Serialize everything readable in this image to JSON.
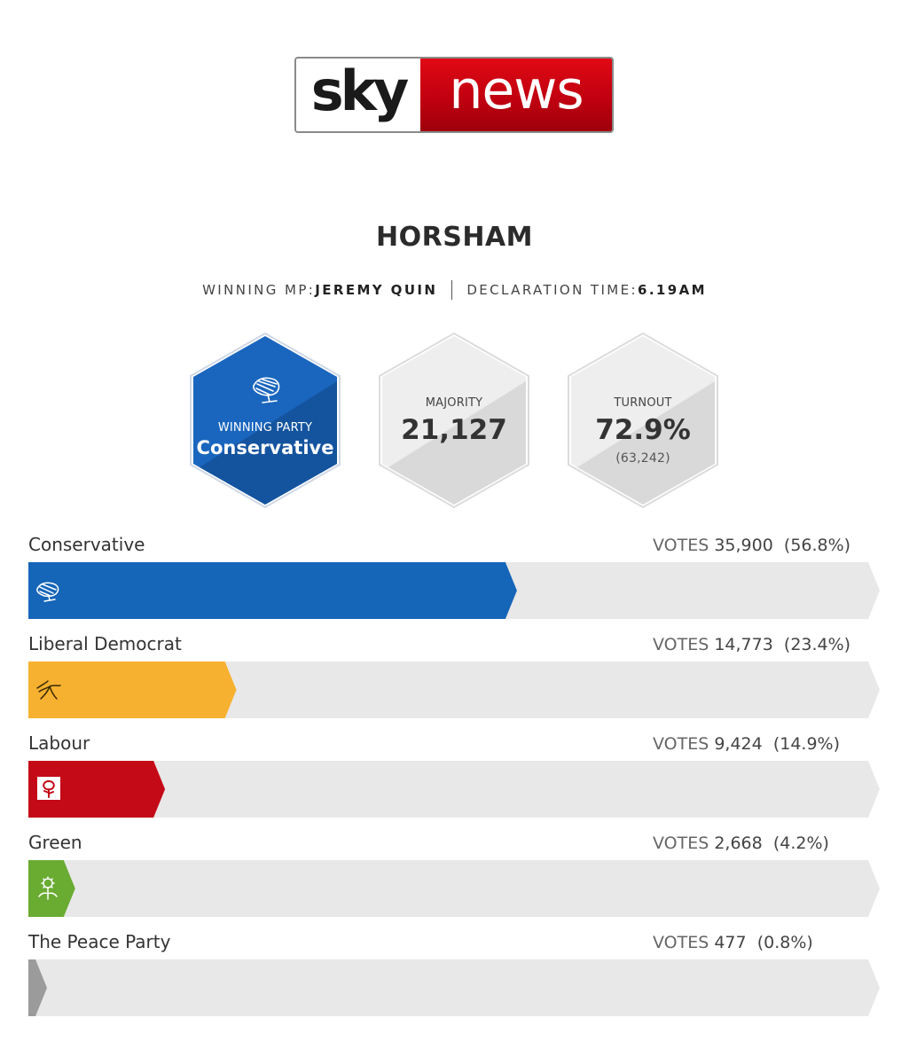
{
  "logo": {
    "left": "sky",
    "right": "news",
    "colors": {
      "news_red": "#c10010"
    }
  },
  "constituency": "HORSHAM",
  "meta": {
    "winning_mp_label": "WINNING MP:",
    "winning_mp": "JEREMY QUIN",
    "declaration_label": "DECLARATION TIME:",
    "declaration_time": "6.19AM"
  },
  "stats": {
    "winning_party_label": "WINNING PARTY",
    "winning_party": "Conservative",
    "winning_color": "#1565b8",
    "majority_label": "MAJORITY",
    "majority": "21,127",
    "turnout_label": "TURNOUT",
    "turnout": "72.9%",
    "turnout_votes": "(63,242)"
  },
  "chart_data": {
    "type": "bar",
    "orientation": "horizontal",
    "votes_label": "VOTES",
    "series": [
      {
        "party": "Conservative",
        "votes": 35900,
        "votes_text": "35,900",
        "percent": 56.8,
        "percent_text": "(56.8%)",
        "color": "#1565b8",
        "icon": "conservative-tree-icon"
      },
      {
        "party": "Liberal Democrat",
        "votes": 14773,
        "votes_text": "14,773",
        "percent": 23.4,
        "percent_text": "(23.4%)",
        "color": "#f7b130",
        "icon": "libdem-bird-icon"
      },
      {
        "party": "Labour",
        "votes": 9424,
        "votes_text": "9,424",
        "percent": 14.9,
        "percent_text": "(14.9%)",
        "color": "#c40a17",
        "icon": "labour-rose-icon"
      },
      {
        "party": "Green",
        "votes": 2668,
        "votes_text": "2,668",
        "percent": 4.2,
        "percent_text": "(4.2%)",
        "color": "#6aab32",
        "icon": "green-sunflower-icon"
      },
      {
        "party": "The Peace Party",
        "votes": 477,
        "votes_text": "477",
        "percent": 0.8,
        "percent_text": "(0.8%)",
        "color": "#9b9b9b",
        "icon": ""
      }
    ],
    "xlim": [
      0,
      100
    ],
    "track_color": "#e8e8e8"
  }
}
